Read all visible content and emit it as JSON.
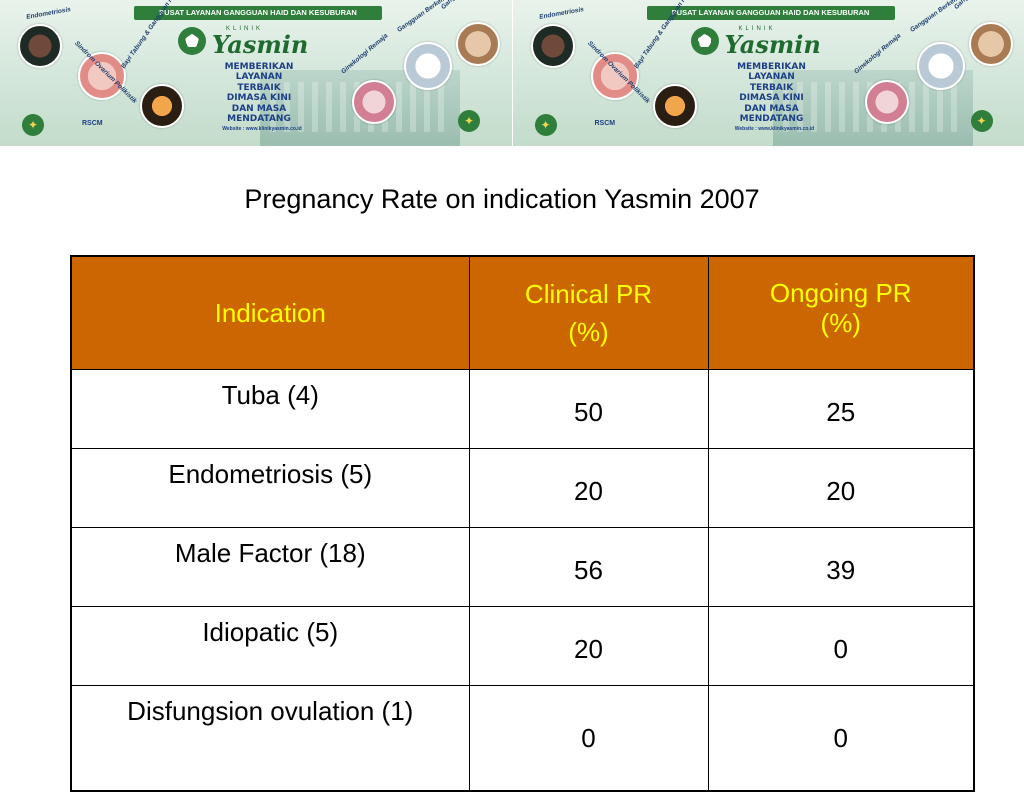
{
  "banner": {
    "top_bar": "PUSAT LAYANAN GANGGUAN HAID DAN KESUBURAN",
    "logo_small": "KLINIK",
    "logo_name": "Yasmin",
    "slogan": [
      "MEMBERIKAN",
      "LAYANAN",
      "TERBAIK",
      "DIMASA KINI",
      "DAN MASA",
      "MENDATANG"
    ],
    "website": "Website : www.klinikyasmin.co.id",
    "services": [
      "Endometriosis",
      "Sindrom Ovarium Polikistik",
      "Bayi Tabung & Gangguan Kesuburan",
      "Gangguan Haid & Menopause",
      "Gangguan Berkemih",
      "Ginekologi Remaja"
    ],
    "rscm": "RSCM",
    "brand_color": "#2f7e3c"
  },
  "title": "Pregnancy Rate  on indication Yasmin 2007",
  "table": {
    "header_bg": "#cc6600",
    "header_fg": "#ffff00",
    "headers": {
      "indication": "Indication",
      "clinical_line1": "Clinical PR",
      "clinical_line2": "(%)",
      "ongoing_line1": "Ongoing PR",
      "ongoing_line2": "(%)"
    },
    "rows": [
      {
        "indication": "Tuba  (4)",
        "clinical": "50",
        "ongoing": "25"
      },
      {
        "indication": "Endometriosis (5)",
        "clinical": "20",
        "ongoing": "20"
      },
      {
        "indication": "Male Factor (18)",
        "clinical": "56",
        "ongoing": "39"
      },
      {
        "indication": "Idiopatic (5)",
        "clinical": "20",
        "ongoing": "0"
      },
      {
        "indication": "Disfungsion ovulation (1)",
        "clinical": "0",
        "ongoing": "0"
      }
    ]
  }
}
